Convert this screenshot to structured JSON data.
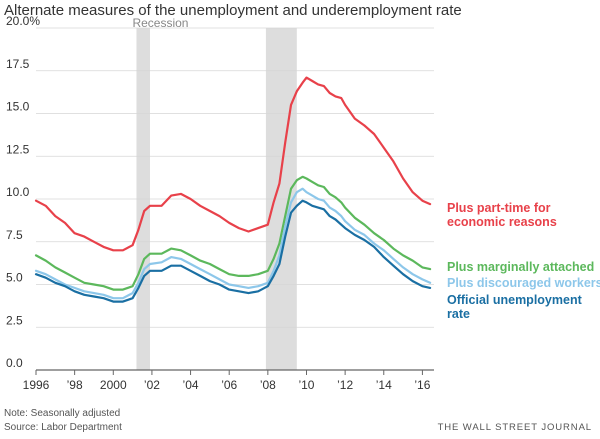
{
  "chart_data": {
    "type": "line",
    "title": "Alternate measures of the unemployment and underemployment rate",
    "ylim": [
      0,
      20
    ],
    "y_ticks": [
      "0.0",
      "2.5",
      "5.0",
      "7.5",
      "10.0",
      "12.5",
      "15.0",
      "17.5",
      "20.0%"
    ],
    "y_tick_values": [
      0,
      2.5,
      5,
      7.5,
      10,
      12.5,
      15,
      17.5,
      20
    ],
    "x_ticks": [
      "1996",
      "’98",
      "2000",
      "’02",
      "’04",
      "’06",
      "’08",
      "’10",
      "’12",
      "’14",
      "’16"
    ],
    "x_tick_values": [
      1996,
      1998,
      2000,
      2002,
      2004,
      2006,
      2008,
      2010,
      2012,
      2014,
      2016
    ],
    "xlim": [
      1996,
      2016.6
    ],
    "recession_label": "Recession",
    "recessions": [
      [
        2001.2,
        2001.9
      ],
      [
        2007.9,
        2009.5
      ]
    ],
    "grid": true,
    "series": [
      {
        "name": "Plus part-time for economic reasons",
        "label_lines": [
          "Plus part-time for",
          "economic reasons"
        ],
        "color": "#e8414a",
        "x": [
          1996,
          1996.5,
          1997,
          1997.5,
          1998,
          1998.5,
          1999,
          1999.5,
          2000,
          2000.5,
          2001,
          2001.3,
          2001.6,
          2001.9,
          2002.5,
          2003,
          2003.5,
          2004,
          2004.5,
          2005,
          2005.5,
          2006,
          2006.5,
          2007,
          2007.5,
          2008,
          2008.3,
          2008.6,
          2008.9,
          2009.2,
          2009.5,
          2009.8,
          2010,
          2010.3,
          2010.6,
          2010.9,
          2011.2,
          2011.5,
          2011.8,
          2012,
          2012.5,
          2013,
          2013.5,
          2014,
          2014.5,
          2015,
          2015.5,
          2016,
          2016.4
        ],
        "values": [
          9.9,
          9.6,
          9.0,
          8.6,
          8.0,
          7.8,
          7.5,
          7.2,
          7.0,
          7.0,
          7.3,
          8.2,
          9.3,
          9.6,
          9.6,
          10.2,
          10.3,
          10.0,
          9.6,
          9.3,
          9.0,
          8.6,
          8.3,
          8.1,
          8.3,
          8.5,
          9.8,
          10.9,
          13.3,
          15.5,
          16.3,
          16.8,
          17.1,
          16.9,
          16.7,
          16.6,
          16.2,
          16.0,
          15.9,
          15.5,
          14.7,
          14.3,
          13.8,
          13.0,
          12.2,
          11.2,
          10.4,
          9.9,
          9.7
        ]
      },
      {
        "name": "Plus marginally attached",
        "label_lines": [
          "Plus marginally attached"
        ],
        "color": "#5cb85c",
        "x": [
          1996,
          1996.5,
          1997,
          1997.5,
          1998,
          1998.5,
          1999,
          1999.5,
          2000,
          2000.5,
          2001,
          2001.3,
          2001.6,
          2001.9,
          2002.5,
          2003,
          2003.5,
          2004,
          2004.5,
          2005,
          2005.5,
          2006,
          2006.5,
          2007,
          2007.5,
          2008,
          2008.3,
          2008.6,
          2008.9,
          2009.2,
          2009.5,
          2009.8,
          2010,
          2010.3,
          2010.6,
          2010.9,
          2011.2,
          2011.5,
          2011.8,
          2012,
          2012.5,
          2013,
          2013.5,
          2014,
          2014.5,
          2015,
          2015.5,
          2016,
          2016.4
        ],
        "values": [
          6.7,
          6.4,
          6.0,
          5.7,
          5.4,
          5.1,
          5.0,
          4.9,
          4.7,
          4.7,
          4.9,
          5.6,
          6.5,
          6.8,
          6.8,
          7.1,
          7.0,
          6.7,
          6.4,
          6.2,
          5.9,
          5.6,
          5.5,
          5.5,
          5.6,
          5.8,
          6.5,
          7.4,
          9.0,
          10.6,
          11.1,
          11.3,
          11.2,
          11.0,
          10.8,
          10.7,
          10.3,
          10.1,
          9.8,
          9.5,
          8.9,
          8.5,
          8.0,
          7.6,
          7.1,
          6.7,
          6.4,
          6.0,
          5.9
        ]
      },
      {
        "name": "Plus discouraged workers",
        "label_lines": [
          "Plus discouraged workers"
        ],
        "color": "#8dc7ea",
        "x": [
          1996,
          1996.5,
          1997,
          1997.5,
          1998,
          1998.5,
          1999,
          1999.5,
          2000,
          2000.5,
          2001,
          2001.3,
          2001.6,
          2001.9,
          2002.5,
          2003,
          2003.5,
          2004,
          2004.5,
          2005,
          2005.5,
          2006,
          2006.5,
          2007,
          2007.5,
          2008,
          2008.3,
          2008.6,
          2008.9,
          2009.2,
          2009.5,
          2009.8,
          2010,
          2010.3,
          2010.6,
          2010.9,
          2011.2,
          2011.5,
          2011.8,
          2012,
          2012.5,
          2013,
          2013.5,
          2014,
          2014.5,
          2015,
          2015.5,
          2016,
          2016.4
        ],
        "values": [
          5.8,
          5.6,
          5.3,
          5.0,
          4.8,
          4.6,
          4.5,
          4.4,
          4.2,
          4.2,
          4.5,
          5.1,
          5.9,
          6.2,
          6.3,
          6.6,
          6.5,
          6.2,
          5.9,
          5.6,
          5.3,
          5.0,
          4.9,
          4.8,
          4.9,
          5.1,
          5.8,
          6.7,
          8.4,
          9.8,
          10.4,
          10.6,
          10.4,
          10.2,
          10.0,
          9.9,
          9.5,
          9.3,
          9.0,
          8.7,
          8.2,
          7.9,
          7.4,
          7.0,
          6.5,
          6.0,
          5.6,
          5.3,
          5.1
        ]
      },
      {
        "name": "Official unemployment rate",
        "label_lines": [
          "Official unemployment",
          "rate"
        ],
        "color": "#1a6fa3",
        "x": [
          1996,
          1996.5,
          1997,
          1997.5,
          1998,
          1998.5,
          1999,
          1999.5,
          2000,
          2000.5,
          2001,
          2001.3,
          2001.6,
          2001.9,
          2002.5,
          2003,
          2003.5,
          2004,
          2004.5,
          2005,
          2005.5,
          2006,
          2006.5,
          2007,
          2007.5,
          2008,
          2008.3,
          2008.6,
          2008.9,
          2009.2,
          2009.5,
          2009.8,
          2010,
          2010.3,
          2010.6,
          2010.9,
          2011.2,
          2011.5,
          2011.8,
          2012,
          2012.5,
          2013,
          2013.5,
          2014,
          2014.5,
          2015,
          2015.5,
          2016,
          2016.4
        ],
        "values": [
          5.6,
          5.4,
          5.1,
          4.9,
          4.6,
          4.4,
          4.3,
          4.2,
          4.0,
          4.0,
          4.2,
          4.8,
          5.5,
          5.8,
          5.8,
          6.1,
          6.1,
          5.8,
          5.5,
          5.2,
          5.0,
          4.7,
          4.6,
          4.5,
          4.6,
          4.9,
          5.5,
          6.2,
          7.8,
          9.2,
          9.6,
          9.9,
          9.8,
          9.6,
          9.5,
          9.4,
          9.0,
          8.8,
          8.5,
          8.3,
          7.9,
          7.6,
          7.2,
          6.6,
          6.1,
          5.6,
          5.2,
          4.9,
          4.8
        ]
      }
    ]
  },
  "footer": {
    "note": "Note: Seasonally adjusted",
    "source": "Source: Labor Department",
    "brand": "THE WALL STREET JOURNAL"
  }
}
